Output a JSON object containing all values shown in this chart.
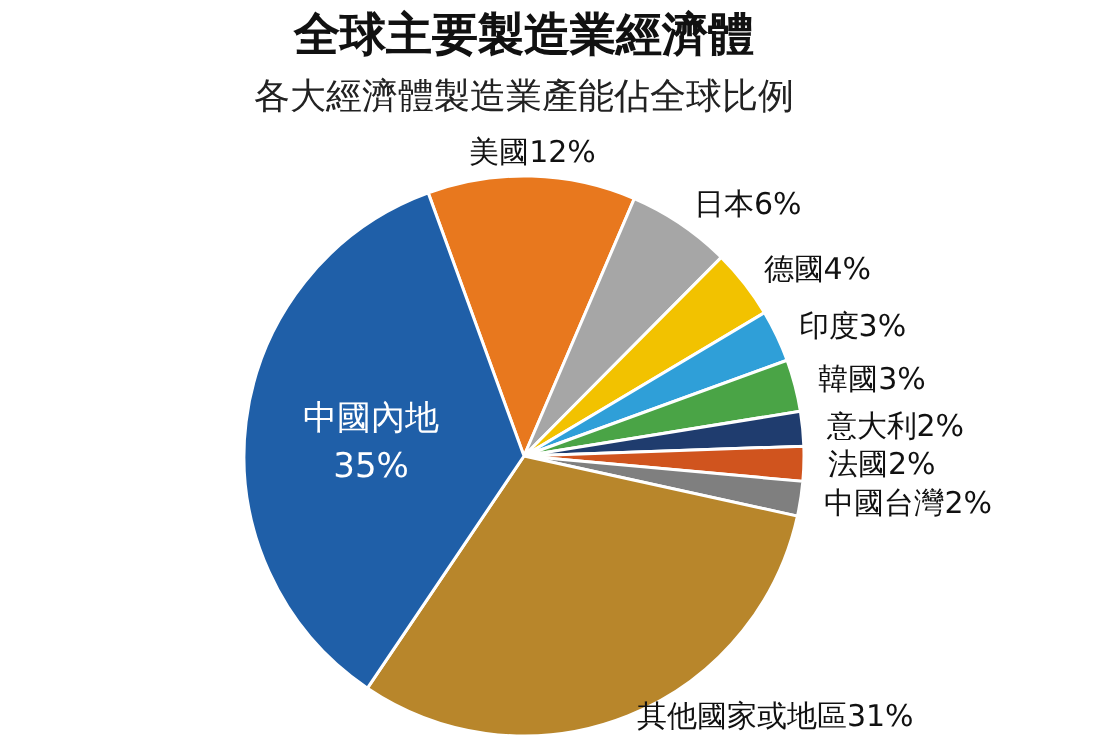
{
  "chart_data": {
    "type": "pie",
    "title": "全球主要製造業經濟體",
    "subtitle": "各大經濟體製造業產能佔全球比例",
    "categories": [
      "美國",
      "日本",
      "德國",
      "印度",
      "韓國",
      "意大利",
      "法國",
      "中國台灣",
      "其他國家或地區",
      "中國內地"
    ],
    "values": [
      12,
      6,
      4,
      3,
      3,
      2,
      2,
      2,
      31,
      35
    ],
    "colors": [
      "#e8781e",
      "#a6a6a6",
      "#f2c200",
      "#2f9fd8",
      "#4aa446",
      "#1f3c6e",
      "#d0541e",
      "#7f7f7f",
      "#b8862b",
      "#1f5fa8"
    ],
    "value_labels": [
      "12%",
      "6%",
      "4%",
      "3%",
      "3%",
      "2%",
      "2%",
      "2%",
      "31%",
      "35%"
    ]
  }
}
